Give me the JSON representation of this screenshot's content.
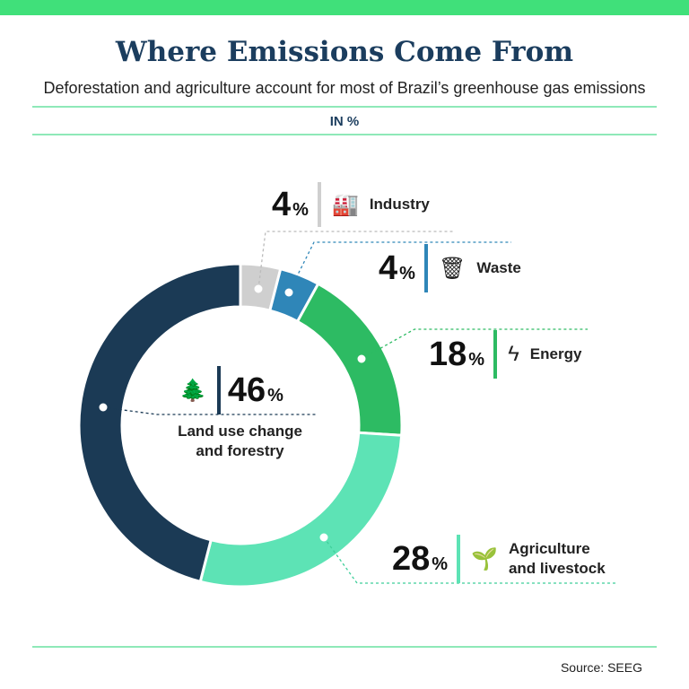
{
  "header": {
    "title": "Where Emissions Come From",
    "subtitle": "Deforestation and agriculture account for most of Brazil’s greenhouse gas emissions",
    "unit": "IN %"
  },
  "chart_data": {
    "type": "pie",
    "donut": true,
    "title": "Where Emissions Come From",
    "unit": "%",
    "categories": [
      "Industry",
      "Waste",
      "Energy",
      "Agriculture and livestock",
      "Land use change and forestry"
    ],
    "values": [
      4,
      4,
      18,
      28,
      46
    ],
    "colors": [
      "#cfcfcf",
      "#2f86b8",
      "#2dbb63",
      "#5de3b5",
      "#1b3a55"
    ],
    "start": "top, clockwise"
  },
  "labels": [
    {
      "pct": "4",
      "sym": "%",
      "name": "Industry",
      "icon": "factory-icon"
    },
    {
      "pct": "4",
      "sym": "%",
      "name": "Waste",
      "icon": "waste-bin-icon"
    },
    {
      "pct": "18",
      "sym": "%",
      "name": "Energy",
      "icon": "lightning-icon"
    },
    {
      "pct": "28",
      "sym": "%",
      "name": "Agriculture and livestock",
      "name1": "Agriculture",
      "name2": "and livestock",
      "icon": "agriculture-icon"
    },
    {
      "pct": "46",
      "sym": "%",
      "name1": "Land use change",
      "name2": "and forestry",
      "icon": "forest-icon"
    }
  ],
  "footer": {
    "source": "Source: SEEG"
  }
}
